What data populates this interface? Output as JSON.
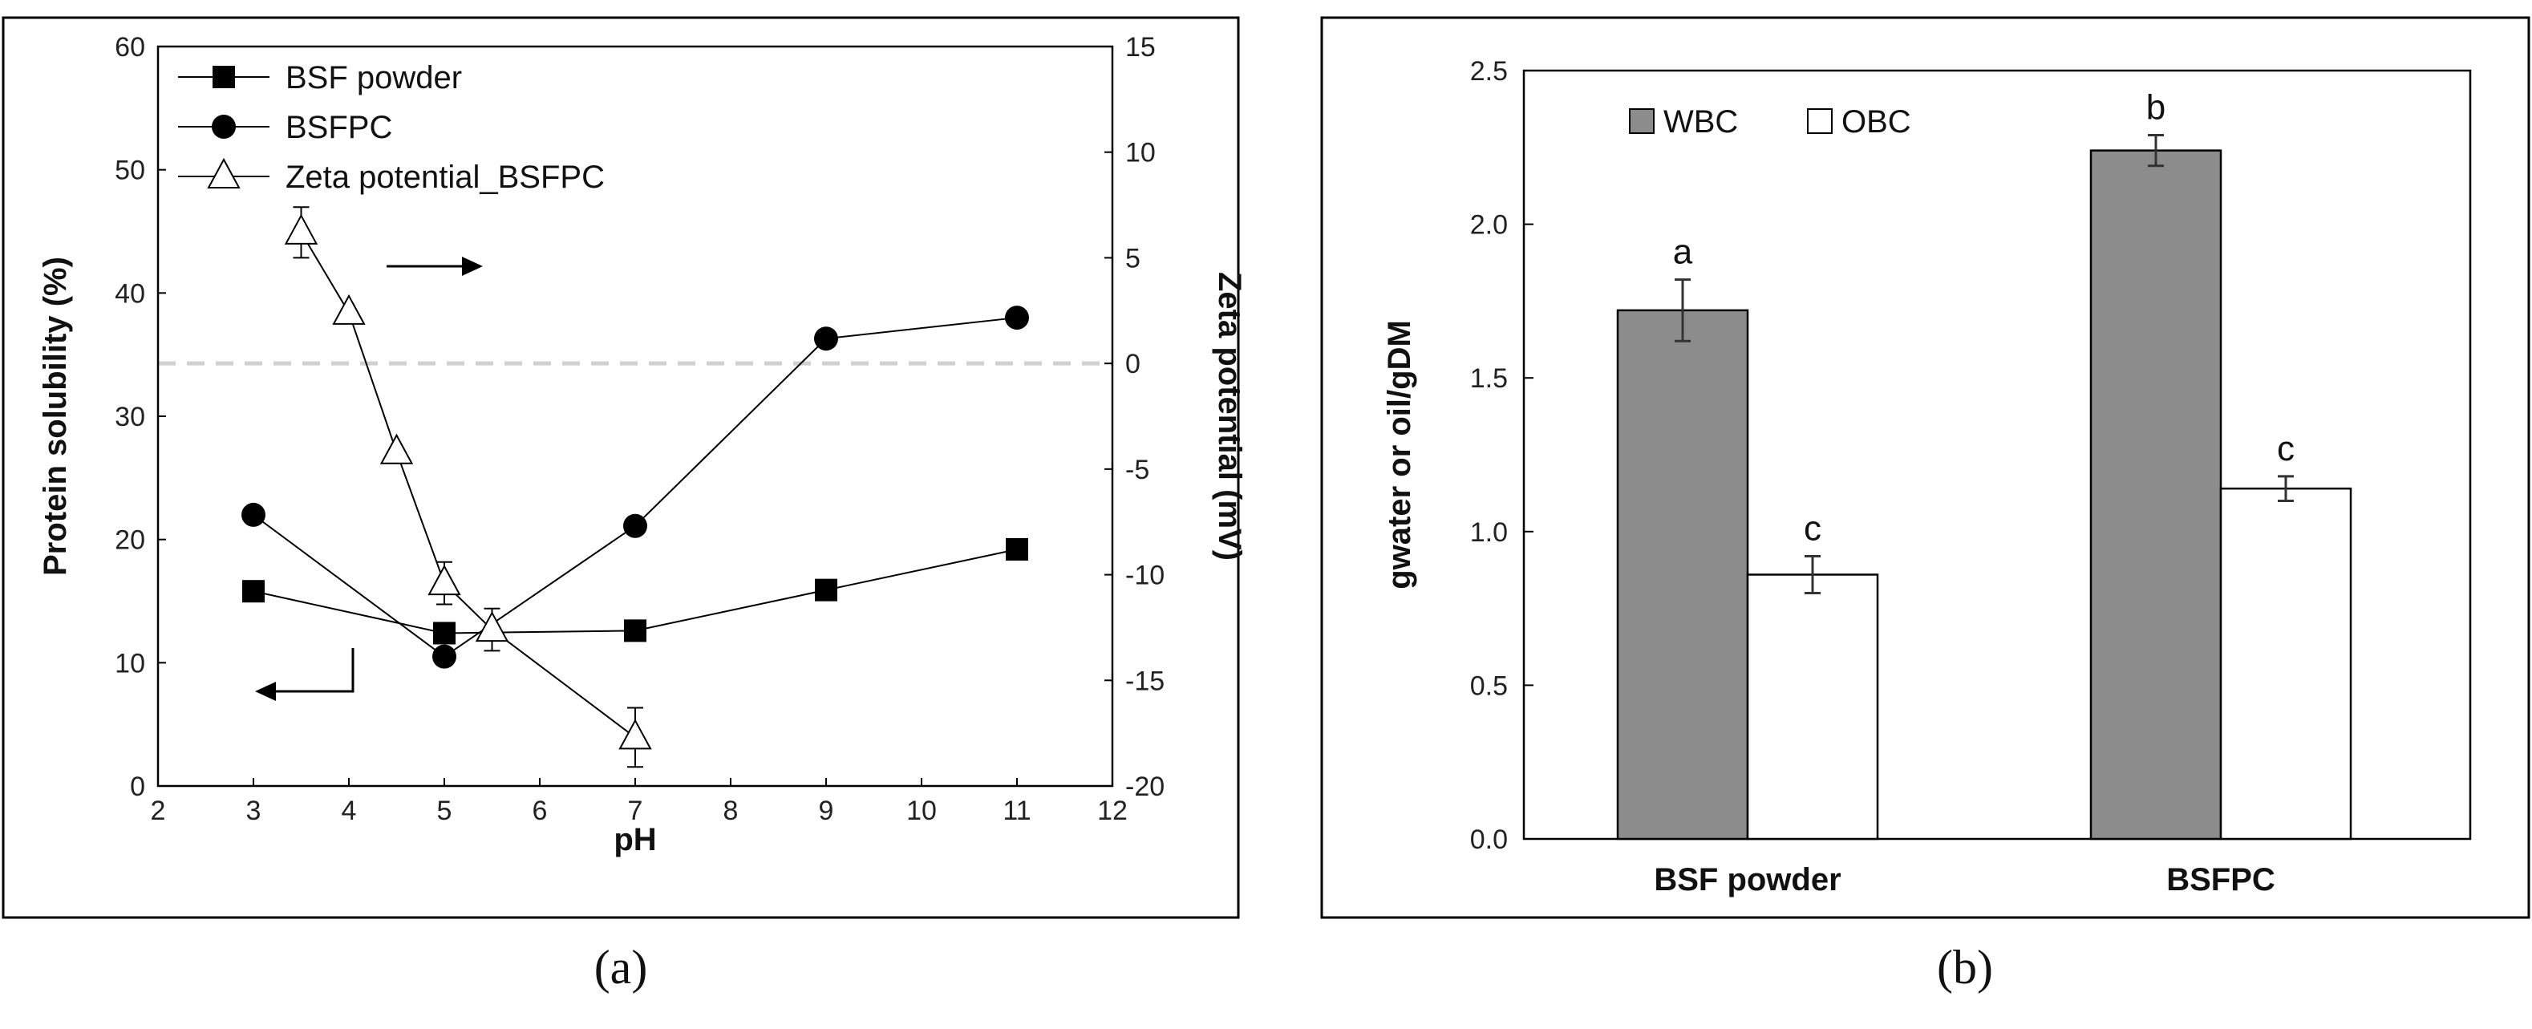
{
  "chart_data": [
    {
      "type": "line",
      "caption": "(a)",
      "xlabel": "pH",
      "ylabel": "Protein solubility (%)",
      "y2label": "Zeta potential (mV)",
      "xlim": [
        2,
        12
      ],
      "ylim": [
        0,
        60
      ],
      "y2lim": [
        -20,
        15
      ],
      "xticks": [
        "2",
        "3",
        "4",
        "5",
        "6",
        "7",
        "8",
        "9",
        "10",
        "11",
        "12"
      ],
      "yticks": [
        "0",
        "10",
        "20",
        "30",
        "40",
        "50",
        "60"
      ],
      "y2ticks": [
        "-20",
        "-15",
        "-10",
        "-5",
        "0",
        "5",
        "10",
        "15"
      ],
      "legend_position": "top-left",
      "series": [
        {
          "name": "BSF powder",
          "marker": "square",
          "axis": "left",
          "x": [
            3,
            5,
            7,
            9,
            11
          ],
          "y": [
            15.8,
            12.4,
            12.6,
            15.9,
            19.2
          ]
        },
        {
          "name": "BSFPC",
          "marker": "circle",
          "axis": "left",
          "x": [
            3,
            5,
            7,
            9,
            11
          ],
          "y": [
            22.0,
            10.5,
            21.1,
            36.3,
            38.0
          ]
        },
        {
          "name": "Zeta potential_BSFPC",
          "marker": "triangle-open",
          "axis": "right",
          "x": [
            3.5,
            4,
            4.5,
            5,
            5.5,
            7
          ],
          "y": [
            6.2,
            2.4,
            -4.2,
            -10.4,
            -12.6,
            -17.7
          ],
          "error": [
            1.2,
            0,
            0,
            1.0,
            1.0,
            1.4
          ]
        }
      ],
      "reference_line": {
        "axis": "right",
        "y": 0,
        "style": "dashed",
        "color": "#d0d0d0"
      },
      "annotations": [
        {
          "type": "arrow",
          "direction": "right",
          "meaning": "right axis"
        },
        {
          "type": "arrow",
          "direction": "left",
          "meaning": "left axis"
        }
      ]
    },
    {
      "type": "bar",
      "caption": "(b)",
      "xlabel": "",
      "ylabel": "gwater or oil/gDM",
      "ylim": [
        0,
        2.5
      ],
      "yticks": [
        "0.0",
        "0.5",
        "1.0",
        "1.5",
        "2.0",
        "2.5"
      ],
      "categories": [
        "BSF powder",
        "BSFPC"
      ],
      "legend_position": "top-left",
      "series": [
        {
          "name": "WBC",
          "color": "#8c8c8c",
          "values": [
            1.72,
            2.24
          ],
          "errors": [
            0.1,
            0.05
          ],
          "letters": [
            "a",
            "b"
          ]
        },
        {
          "name": "OBC",
          "color": "#ffffff",
          "values": [
            0.86,
            1.14
          ],
          "errors": [
            0.06,
            0.04
          ],
          "letters": [
            "c",
            "c"
          ]
        }
      ]
    }
  ]
}
